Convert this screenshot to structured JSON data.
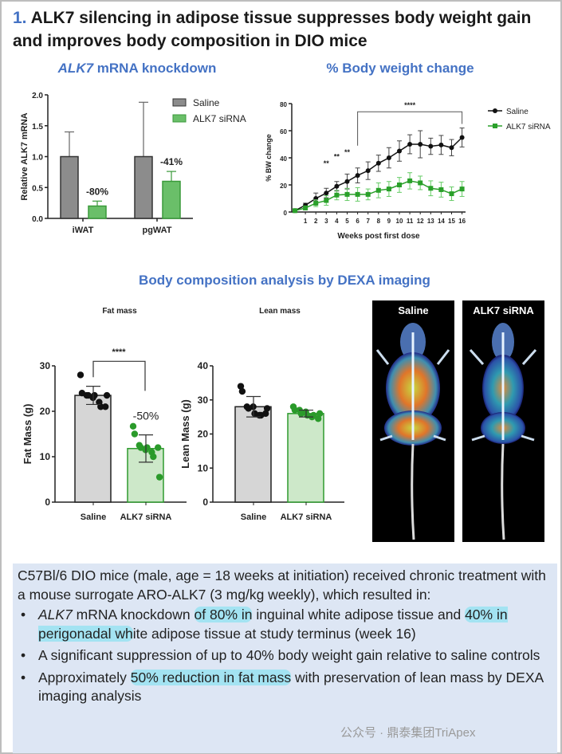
{
  "title": {
    "number": "1.",
    "text": "ALK7 silencing in adipose tissue suppresses body weight gain and improves body composition in DIO mice"
  },
  "subtitles": {
    "mrna": "ALK7 mRNA knockdown",
    "mrna_italic": "ALK7",
    "mrna_rest": " mRNA knockdown",
    "bw": "% Body weight change",
    "dexa": "Body composition analysis by DEXA imaging"
  },
  "colors": {
    "saline": "#8c8c8c",
    "sirna": "#6abf69",
    "accent": "#4472c4",
    "highlight": "#a3e3f2"
  },
  "chart_data": [
    {
      "type": "bar",
      "id": "mrna",
      "ylabel": "Relative ALK7 mRNA",
      "categories": [
        "iWAT",
        "pgWAT"
      ],
      "ylim": [
        0,
        2.0
      ],
      "yticks": [
        "0.0",
        "0.5",
        "1.0",
        "1.5",
        "2.0"
      ],
      "series": [
        {
          "name": "Saline",
          "values": [
            1.0,
            1.0
          ],
          "errors": [
            0.4,
            0.88
          ]
        },
        {
          "name": "ALK7 siRNA",
          "values": [
            0.2,
            0.6
          ],
          "errors": [
            0.08,
            0.16
          ]
        }
      ],
      "annotations": [
        "-80%",
        "-41%"
      ],
      "legend": "top-right"
    },
    {
      "type": "line",
      "id": "bw",
      "ylabel": "% BW change",
      "xlabel": "Weeks post first dose",
      "ylim": [
        0,
        80
      ],
      "yticks": [
        "0",
        "20",
        "40",
        "60",
        "80"
      ],
      "x": [
        0,
        1,
        2,
        3,
        4,
        5,
        6,
        7,
        8,
        9,
        10,
        11,
        12,
        13,
        14,
        15,
        16
      ],
      "xticks": [
        "1",
        "2",
        "3",
        "4",
        "5",
        "6",
        "7",
        "8",
        "9",
        "10",
        "11",
        "12",
        "13",
        "14",
        "15",
        "16"
      ],
      "series": [
        {
          "name": "Saline",
          "values": [
            1,
            5,
            10,
            14,
            19,
            22.5,
            27,
            30.5,
            36,
            40,
            45,
            50,
            50,
            48.5,
            49.5,
            47.5,
            55
          ],
          "errors": [
            1,
            1.5,
            4,
            3.5,
            3.5,
            5.5,
            5.5,
            6.5,
            6,
            7.5,
            7.5,
            7,
            10,
            6,
            7,
            6,
            7
          ]
        },
        {
          "name": "ALK7 siRNA",
          "values": [
            1,
            3,
            6.5,
            8.5,
            12.5,
            13,
            13,
            13,
            16,
            17,
            20,
            23,
            21.5,
            17.5,
            16.5,
            13.5,
            17
          ],
          "errors": [
            1,
            1.5,
            2.5,
            3.5,
            3.5,
            4.5,
            5,
            4,
            5.5,
            5.5,
            5.5,
            6,
            5,
            5.5,
            5.5,
            5,
            5.5
          ]
        }
      ],
      "significance": [
        {
          "x": 3,
          "label": "**"
        },
        {
          "x": 4,
          "label": "**"
        },
        {
          "x": 5,
          "label": "**"
        },
        {
          "from": 6,
          "to": 16,
          "label": "****"
        }
      ],
      "legend": "right"
    },
    {
      "type": "bar",
      "id": "fat",
      "title": "Fat mass",
      "ylabel": "Fat Mass (g)",
      "categories": [
        "Saline",
        "ALK7 siRNA"
      ],
      "ylim": [
        0,
        30
      ],
      "yticks": [
        "0",
        "10",
        "20",
        "30"
      ],
      "values": [
        23.5,
        11.8
      ],
      "errors": [
        2,
        3
      ],
      "points": [
        [
          28,
          24,
          23.5,
          23.5,
          23,
          23.5,
          22,
          21,
          21,
          23.5
        ],
        [
          16.7,
          15,
          12.5,
          12,
          11.5,
          12,
          11,
          10,
          12,
          5.5
        ]
      ],
      "annotations": [
        "****",
        "-50%"
      ]
    },
    {
      "type": "bar",
      "id": "lean",
      "title": "Lean mass",
      "ylabel": "Lean Mass (g)",
      "categories": [
        "Saline",
        "ALK7 siRNA"
      ],
      "ylim": [
        0,
        40
      ],
      "yticks": [
        "0",
        "10",
        "20",
        "30",
        "40"
      ],
      "values": [
        28,
        26
      ],
      "errors": [
        3,
        1
      ],
      "points": [
        [
          34,
          32.5,
          28,
          27.5,
          28,
          26,
          25.5,
          25.5,
          26,
          27.5
        ],
        [
          28,
          27,
          27,
          26,
          26.5,
          25.5,
          25,
          25.5,
          24.5,
          26
        ]
      ]
    }
  ],
  "images": {
    "saline": "Saline",
    "sirna": "ALK7 siRNA"
  },
  "summary": {
    "intro": "C57Bl/6 DIO mice (male, age = 18 weeks at initiation) received chronic treatment with a mouse surrogate ARO-ALK7 (3 mg/kg weekly), which resulted in:",
    "b1": {
      "italic": "ALK7",
      "a": " mRNA knockdown ",
      "h1": "of 80% in",
      "b": " inguinal white adipose tissue and ",
      "h2": "40% in perigonadal wh",
      "c": "ite adipose tissue at study terminus (week 16)"
    },
    "b2": "A significant suppression of up to 40% body weight gain relative to saline controls",
    "b3": {
      "a": "Approximately ",
      "h": "50% reduction in fat mass",
      "b": " with preservation of lean mass by DEXA imaging analysis"
    }
  },
  "watermark": "公众号 · 鼎泰集团TriApex"
}
